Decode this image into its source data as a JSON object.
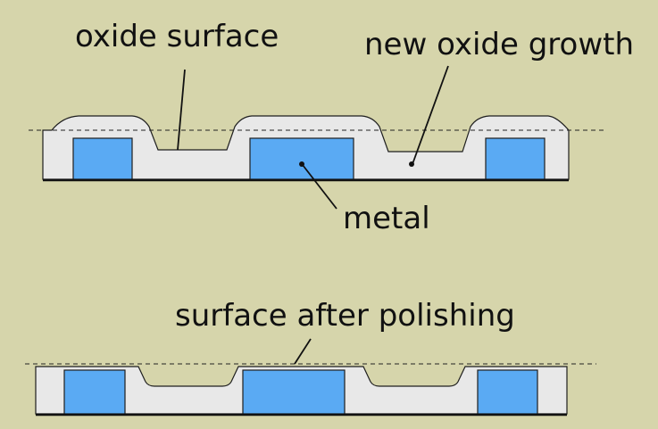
{
  "labels": {
    "oxide_surface": "oxide surface",
    "new_oxide_growth": "new oxide growth",
    "metal": "metal",
    "surface_after_polishing": "surface after polishing"
  },
  "colors": {
    "background": "#d6d5ab",
    "oxide": "#e8e8e8",
    "metal": "#5aaaf3",
    "outline": "#222222"
  }
}
